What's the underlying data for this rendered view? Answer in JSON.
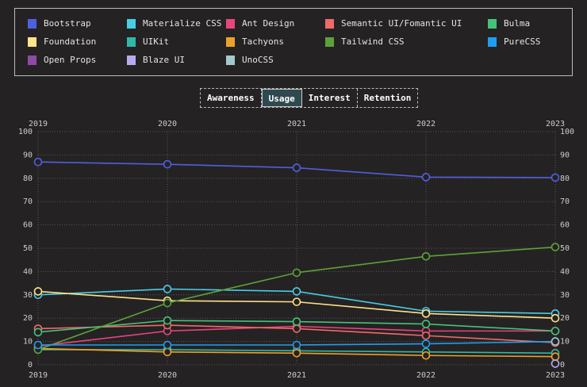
{
  "tabs": [
    {
      "label": "Awareness",
      "active": false
    },
    {
      "label": "Usage",
      "active": true
    },
    {
      "label": "Interest",
      "active": false
    },
    {
      "label": "Retention",
      "active": false
    }
  ],
  "chart_data": {
    "type": "line",
    "x": [
      2019,
      2020,
      2021,
      2022,
      2023
    ],
    "ylim": [
      0,
      100
    ],
    "yticks": [
      0,
      10,
      20,
      30,
      40,
      50,
      60,
      70,
      80,
      90,
      100
    ],
    "grid": true,
    "legend_placement": "top",
    "series": [
      {
        "name": "Bootstrap",
        "color": "#4f5fe0",
        "values": [
          87,
          86,
          84.5,
          80.5,
          80.3
        ]
      },
      {
        "name": "Materialize CSS",
        "color": "#48cde6",
        "values": [
          30,
          32.5,
          31.5,
          23,
          22
        ]
      },
      {
        "name": "Ant Design",
        "color": "#e8457e",
        "values": [
          8,
          14.5,
          16.5,
          14.5,
          14.5
        ]
      },
      {
        "name": "Semantic UI/Fomantic UI",
        "color": "#f06a6a",
        "values": [
          15.5,
          17,
          15.5,
          12.5,
          9.5
        ]
      },
      {
        "name": "Bulma",
        "color": "#45c27a",
        "values": [
          14,
          19,
          18.5,
          17.5,
          14.5
        ]
      },
      {
        "name": "Foundation",
        "color": "#fde38a",
        "values": [
          31.5,
          27.5,
          27,
          22,
          20
        ]
      },
      {
        "name": "UIKit",
        "color": "#2fb8a8",
        "values": [
          6.5,
          6.5,
          6,
          5.5,
          5
        ]
      },
      {
        "name": "Tachyons",
        "color": "#eea128",
        "values": [
          7,
          5.5,
          5,
          4,
          3.5
        ]
      },
      {
        "name": "Tailwind CSS",
        "color": "#5ca23a",
        "values": [
          6.5,
          26.5,
          39.5,
          46.5,
          50.5
        ]
      },
      {
        "name": "PureCSS",
        "color": "#1f9df0",
        "values": [
          8.5,
          8.5,
          8.5,
          9,
          10
        ]
      },
      {
        "name": "Open Props",
        "color": "#8e4aa8",
        "values": [
          null,
          null,
          null,
          null,
          null
        ]
      },
      {
        "name": "Blaze UI",
        "color": "#b5acef",
        "values": [
          null,
          null,
          null,
          null,
          0.5
        ]
      },
      {
        "name": "UnoCSS",
        "color": "#a3c9cc",
        "values": [
          null,
          null,
          null,
          null,
          10
        ]
      }
    ]
  }
}
